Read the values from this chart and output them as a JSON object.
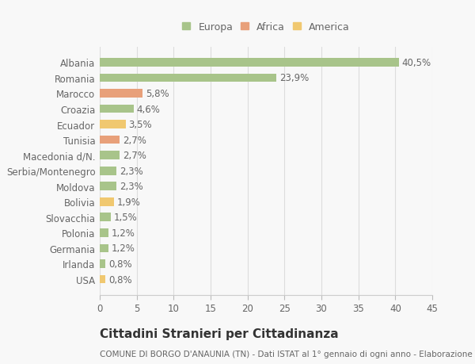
{
  "categories": [
    "Albania",
    "Romania",
    "Marocco",
    "Croazia",
    "Ecuador",
    "Tunisia",
    "Macedonia d/N.",
    "Serbia/Montenegro",
    "Moldova",
    "Bolivia",
    "Slovacchia",
    "Polonia",
    "Germania",
    "Irlanda",
    "USA"
  ],
  "values": [
    40.5,
    23.9,
    5.8,
    4.6,
    3.5,
    2.7,
    2.7,
    2.3,
    2.3,
    1.9,
    1.5,
    1.2,
    1.2,
    0.8,
    0.8
  ],
  "labels": [
    "40,5%",
    "23,9%",
    "5,8%",
    "4,6%",
    "3,5%",
    "2,7%",
    "2,7%",
    "2,3%",
    "2,3%",
    "1,9%",
    "1,5%",
    "1,2%",
    "1,2%",
    "0,8%",
    "0,8%"
  ],
  "colors": [
    "#a8c48a",
    "#a8c48a",
    "#e8a07a",
    "#a8c48a",
    "#f0c870",
    "#e8a07a",
    "#a8c48a",
    "#a8c48a",
    "#a8c48a",
    "#f0c870",
    "#a8c48a",
    "#a8c48a",
    "#a8c48a",
    "#a8c48a",
    "#f0c870"
  ],
  "legend_labels": [
    "Europa",
    "Africa",
    "America"
  ],
  "legend_colors": [
    "#a8c48a",
    "#e8a07a",
    "#f0c870"
  ],
  "title": "Cittadini Stranieri per Cittadinanza",
  "subtitle": "COMUNE DI BORGO D'ANAUNIA (TN) - Dati ISTAT al 1° gennaio di ogni anno - Elaborazione TUTTITALIA.IT",
  "xlim": [
    0,
    45
  ],
  "xticks": [
    0,
    5,
    10,
    15,
    20,
    25,
    30,
    35,
    40,
    45
  ],
  "background_color": "#f8f8f8",
  "plot_bg_color": "#f8f8f8",
  "grid_color": "#dddddd",
  "bar_height": 0.55,
  "label_fontsize": 8.5,
  "tick_fontsize": 8.5,
  "title_fontsize": 11,
  "subtitle_fontsize": 7.5
}
